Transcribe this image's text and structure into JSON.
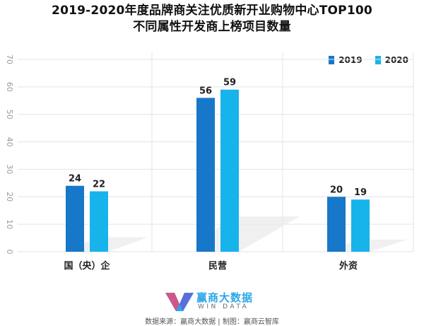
{
  "title_lines": [
    "2019-2020年度品牌商关注优质新开业购物中心TOP100",
    "不同属性开发商上榜项目数量"
  ],
  "colors": {
    "s2019": "#1778c9",
    "s2020": "#17b4ec",
    "grid": "#e3e3e3",
    "axis_text": "#9a9a9a",
    "shadow": "#e9e9e9"
  },
  "legend": [
    {
      "name": "2019",
      "color": "#1778c9"
    },
    {
      "name": "2020",
      "color": "#17b4ec"
    }
  ],
  "chart_data": {
    "type": "bar",
    "categories": [
      "国（央）企",
      "民营",
      "外资"
    ],
    "series": [
      {
        "name": "2019",
        "values": [
          24,
          56,
          20
        ]
      },
      {
        "name": "2020",
        "values": [
          22,
          59,
          19
        ]
      }
    ],
    "ylim": [
      0,
      70
    ],
    "yticks": [
      0,
      10,
      20,
      30,
      40,
      50,
      60,
      70
    ],
    "grid": true,
    "legend_position": "top-right"
  },
  "footer": {
    "logo_cn": "赢商大数据",
    "logo_en": "WIN DATA",
    "source": "数据来源：赢商大数据 | 制图：赢商云智库"
  }
}
